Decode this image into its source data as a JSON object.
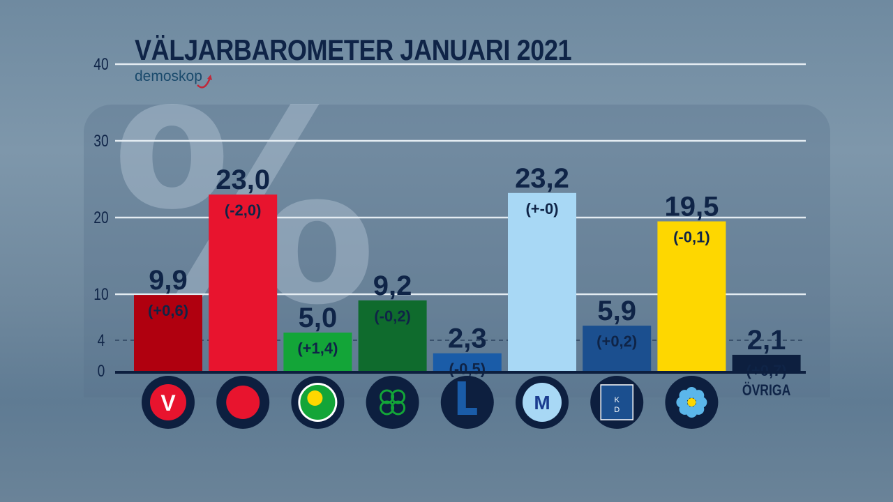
{
  "chart_data": {
    "type": "bar",
    "title": "VÄLJARBAROMETER JANUARI 2021",
    "categories": [
      "V",
      "S",
      "MP",
      "C",
      "L",
      "M",
      "KD",
      "SD",
      "ÖVRIGA"
    ],
    "values": [
      9.9,
      23.0,
      5.0,
      9.2,
      2.3,
      23.2,
      5.9,
      19.5,
      2.1
    ],
    "value_labels": [
      "9,9",
      "23,0",
      "5,0",
      "9,2",
      "2,3",
      "23,2",
      "5,9",
      "19,5",
      "2,1"
    ],
    "change_labels": [
      "(+0,6)",
      "(-2,0)",
      "(+1,4)",
      "(-0,2)",
      "(-0,5)",
      "(+-0)",
      "(+0,2)",
      "(-0,1)",
      "(+0,7)"
    ],
    "colors": [
      "#b0000f",
      "#e8142e",
      "#13a538",
      "#0f6b2d",
      "#1a5ca8",
      "#a8d8f5",
      "#1b4f8f",
      "#fed700",
      "#0d1f3f"
    ],
    "logos": [
      "v-carnation-icon",
      "s-rose-icon",
      "mp-dandelion-icon",
      "c-clover-icon",
      "l-letter-icon",
      "m-logo-icon",
      "kd-logo-icon",
      "sd-flower-icon",
      "ÖVRIGA"
    ],
    "ylim": [
      0,
      40
    ],
    "yticks": [
      "0",
      "4",
      "10",
      "20",
      "30",
      "40"
    ],
    "threshold": 4,
    "grid": true,
    "xlabel": "",
    "ylabel": ""
  },
  "watermark": "%",
  "logo_text": "demoskop"
}
